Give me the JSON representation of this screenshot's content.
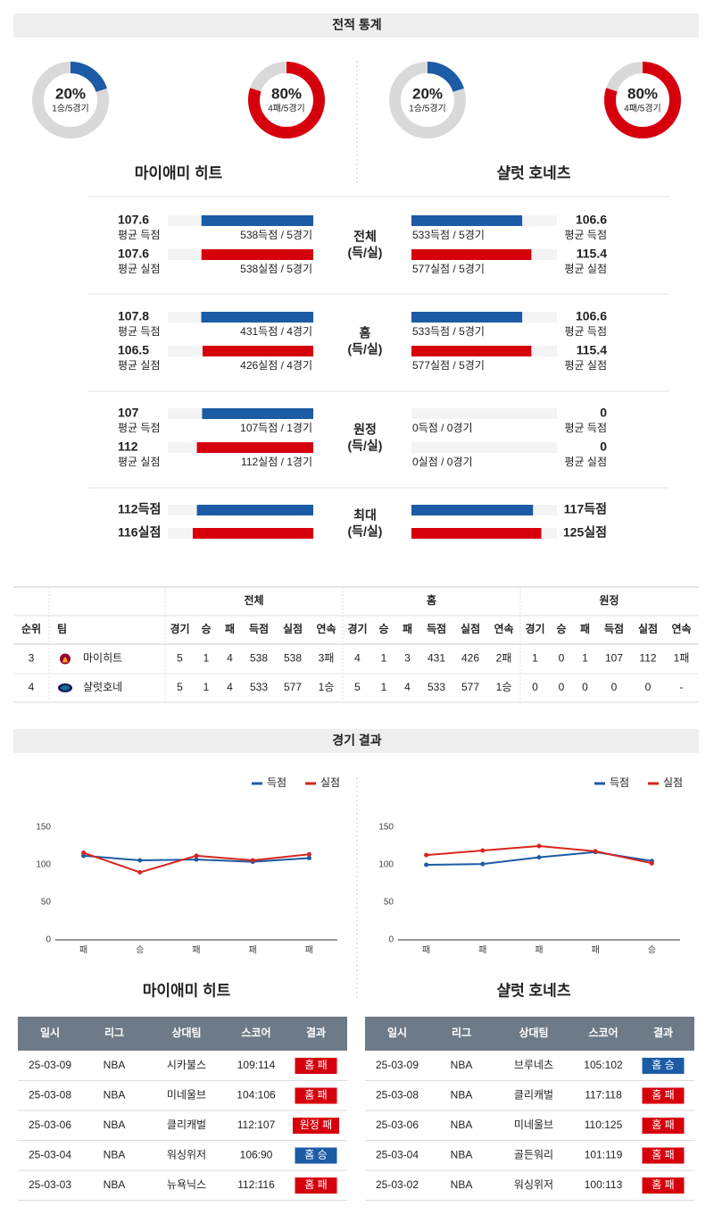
{
  "stats": {
    "title": "전적 통계",
    "colors": {
      "win": "#1c5ba5",
      "loss": "#d6000d"
    },
    "teams": [
      {
        "name": "마이애미 히트",
        "win": {
          "percent": 20,
          "percent_label": "20%",
          "detail": "1승/5경기"
        },
        "loss": {
          "percent": 80,
          "percent_label": "80%",
          "detail": "4패/5경기"
        }
      },
      {
        "name": "샬럿 호네츠",
        "win": {
          "percent": 20,
          "percent_label": "20%",
          "detail": "1승/5경기"
        },
        "loss": {
          "percent": 80,
          "percent_label": "80%",
          "detail": "4패/5경기"
        }
      }
    ],
    "groups": [
      {
        "label": [
          "전체",
          "(득/실)"
        ],
        "teams": [
          [
            {
              "value": 107.6,
              "caption": "평균 득점",
              "detail": "538득점 / 5경기"
            },
            {
              "value": 107.6,
              "caption": "평균 실점",
              "detail": "538실점 / 5경기"
            }
          ],
          [
            {
              "value": 106.6,
              "caption": "평균 득점",
              "detail": "533득점 / 5경기"
            },
            {
              "value": 115.4,
              "caption": "평균 실점",
              "detail": "577실점 / 5경기"
            }
          ]
        ]
      },
      {
        "label": [
          "홈",
          "(득/실)"
        ],
        "teams": [
          [
            {
              "value": 107.8,
              "caption": "평균 득점",
              "detail": "431득점 / 4경기"
            },
            {
              "value": 106.5,
              "caption": "평균 실점",
              "detail": "426실점 / 4경기"
            }
          ],
          [
            {
              "value": 106.6,
              "caption": "평균 득점",
              "detail": "533득점 / 5경기"
            },
            {
              "value": 115.4,
              "caption": "평균 실점",
              "detail": "577실점 / 5경기"
            }
          ]
        ]
      },
      {
        "label": [
          "원정",
          "(득/실)"
        ],
        "teams": [
          [
            {
              "value": 107,
              "caption": "평균 득점",
              "detail": "107득점 / 1경기"
            },
            {
              "value": 112,
              "caption": "평균 실점",
              "detail": "112실점 / 1경기"
            }
          ],
          [
            {
              "value": 0,
              "caption": "평균 득점",
              "detail": "0득점 / 0경기"
            },
            {
              "value": 0,
              "caption": "평균 실점",
              "detail": "0실점 / 0경기"
            }
          ]
        ]
      },
      {
        "label": [
          "최대",
          "(득/실)"
        ],
        "teams": [
          [
            {
              "value": 112,
              "value_label": "112득점"
            },
            {
              "value": 116,
              "value_label": "116실점"
            }
          ],
          [
            {
              "value": 117,
              "value_label": "117득점"
            },
            {
              "value": 125,
              "value_label": "125실점"
            }
          ]
        ]
      }
    ]
  },
  "standings": {
    "groups": [
      "전체",
      "홈",
      "원정"
    ],
    "columns": [
      "순위",
      "팀",
      "경기",
      "승",
      "패",
      "득점",
      "실점",
      "연속",
      "경기",
      "승",
      "패",
      "득점",
      "실점",
      "연속",
      "경기",
      "승",
      "패",
      "득점",
      "실점",
      "연속"
    ],
    "rows": [
      [
        3,
        "마이히트",
        5,
        1,
        4,
        538,
        538,
        "3패",
        4,
        1,
        3,
        431,
        426,
        "2패",
        1,
        0,
        1,
        107,
        112,
        "1패"
      ],
      [
        4,
        "샬럿호네",
        5,
        1,
        4,
        533,
        577,
        "1승",
        5,
        1,
        4,
        533,
        577,
        "1승",
        0,
        0,
        0,
        0,
        0,
        "-"
      ]
    ]
  },
  "results": {
    "title": "경기 결과",
    "columns": [
      "일시",
      "리그",
      "상대팀",
      "스코어",
      "결과"
    ],
    "teams": [
      {
        "rows": [
          [
            "25-03-09",
            "NBA",
            "시카불스",
            "109:114",
            "홈 패"
          ],
          [
            "25-03-08",
            "NBA",
            "미네울브",
            "104:106",
            "홈 패"
          ],
          [
            "25-03-06",
            "NBA",
            "클리캐벌",
            "112:107",
            "원정 패"
          ],
          [
            "25-03-04",
            "NBA",
            "워싱위저",
            "106:90",
            "홈 승"
          ],
          [
            "25-03-03",
            "NBA",
            "뉴욕닉스",
            "112:116",
            "홈 패"
          ]
        ]
      },
      {
        "rows": [
          [
            "25-03-09",
            "NBA",
            "브루네츠",
            "105:102",
            "홈 승"
          ],
          [
            "25-03-08",
            "NBA",
            "클리캐벌",
            "117:118",
            "홈 패"
          ],
          [
            "25-03-06",
            "NBA",
            "미네울브",
            "110:125",
            "홈 패"
          ],
          [
            "25-03-04",
            "NBA",
            "골든워리",
            "101:119",
            "홈 패"
          ],
          [
            "25-03-02",
            "NBA",
            "워싱위저",
            "100:113",
            "홈 패"
          ]
        ]
      }
    ]
  },
  "chart_data": [
    {
      "type": "line",
      "title": "마이애미 히트",
      "categories": [
        "패",
        "승",
        "패",
        "패",
        "패"
      ],
      "series": [
        {
          "name": "득점",
          "color": "#1c5ba5",
          "values": [
            112,
            106,
            107,
            104,
            109
          ]
        },
        {
          "name": "실점",
          "color": "#d7261e",
          "values": [
            116,
            90,
            112,
            106,
            114
          ]
        }
      ],
      "ylim": [
        0,
        150
      ],
      "yticks": [
        0,
        50,
        100,
        150
      ],
      "grid": false
    },
    {
      "type": "line",
      "title": "샬럿 호네츠",
      "categories": [
        "패",
        "패",
        "패",
        "패",
        "승"
      ],
      "series": [
        {
          "name": "득점",
          "color": "#1c5ba5",
          "values": [
            100,
            101,
            110,
            117,
            105
          ]
        },
        {
          "name": "실점",
          "color": "#d7261e",
          "values": [
            113,
            119,
            125,
            118,
            102
          ]
        }
      ],
      "ylim": [
        0,
        150
      ],
      "yticks": [
        0,
        50,
        100,
        150
      ],
      "grid": false
    }
  ]
}
